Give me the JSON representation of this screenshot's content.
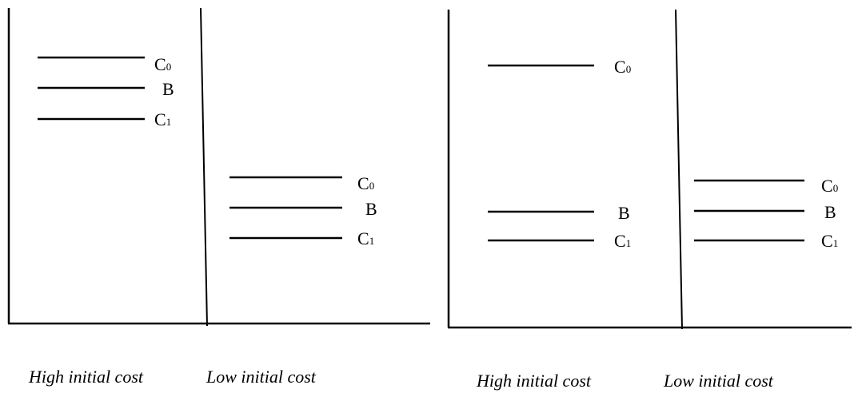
{
  "panels": [
    {
      "left_caption": "High initial cost",
      "right_caption": "Low initial cost",
      "left_group": [
        {
          "letter": "C",
          "sub": "0"
        },
        {
          "letter": "B",
          "sub": ""
        },
        {
          "letter": "C",
          "sub": "1"
        }
      ],
      "right_group": [
        {
          "letter": "C",
          "sub": "0"
        },
        {
          "letter": "B",
          "sub": ""
        },
        {
          "letter": "C",
          "sub": "1"
        }
      ]
    },
    {
      "left_caption": "High initial cost",
      "right_caption": "Low initial cost",
      "left_group": [
        {
          "letter": "C",
          "sub": "0"
        },
        {
          "letter": "B",
          "sub": ""
        },
        {
          "letter": "C",
          "sub": "1"
        }
      ],
      "right_group": [
        {
          "letter": "C",
          "sub": "0"
        },
        {
          "letter": "B",
          "sub": ""
        },
        {
          "letter": "C",
          "sub": "1"
        }
      ]
    }
  ]
}
